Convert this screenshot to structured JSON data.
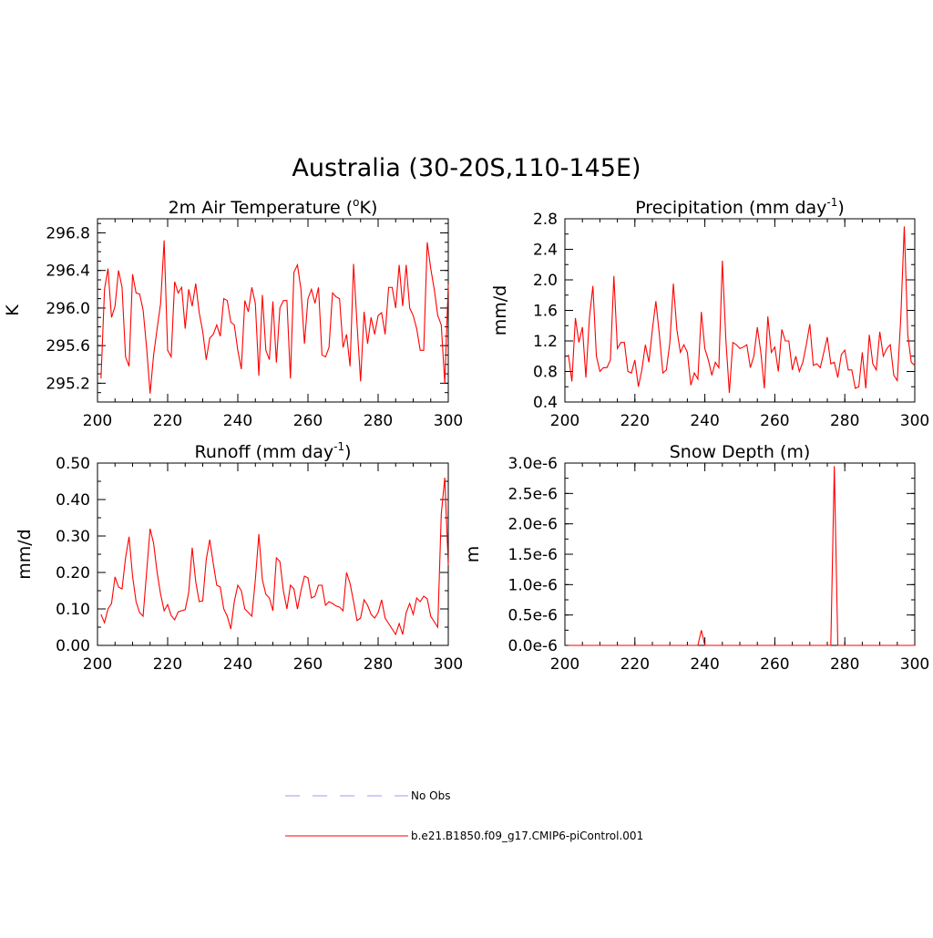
{
  "title": "Australia (30-20S,110-145E)",
  "colors": {
    "series": "#ff0000",
    "obs": "#9999ff",
    "axis": "#000000"
  },
  "legend": {
    "obs_label": "No Obs",
    "model_label": "b.e21.B1850.f09_g17.CMIP6-piControl.001"
  },
  "chart_data": [
    {
      "type": "line",
      "title": "2m Air Temperature (",
      "title_sup": "o",
      "title_after": "K)",
      "xlabel": "",
      "ylabel": "K",
      "xlim": [
        200,
        300
      ],
      "ylim": [
        295.0,
        296.95
      ],
      "xticks": [
        200,
        220,
        240,
        260,
        280,
        300
      ],
      "xtick_labels": [
        "200",
        "220",
        "240",
        "260",
        "280",
        "300"
      ],
      "yticks": [
        295.2,
        295.6,
        296.0,
        296.4,
        296.8
      ],
      "ytick_labels": [
        "295.2",
        "295.6",
        "296.0",
        "296.4",
        "296.8"
      ],
      "x_start": 201,
      "series": [
        {
          "name": "b.e21.B1850.f09_g17.CMIP6-piControl.001",
          "values": [
            295.25,
            296.2,
            296.42,
            295.9,
            296.02,
            296.4,
            296.22,
            295.48,
            295.38,
            296.36,
            296.16,
            296.15,
            295.98,
            295.58,
            295.09,
            295.5,
            295.78,
            296.05,
            296.72,
            295.55,
            295.48,
            296.28,
            296.16,
            296.22,
            295.78,
            296.2,
            296.02,
            296.26,
            295.95,
            295.75,
            295.45,
            295.68,
            295.72,
            295.82,
            295.7,
            296.1,
            296.08,
            295.85,
            295.82,
            295.55,
            295.35,
            296.08,
            295.96,
            296.22,
            296.05,
            295.28,
            296.14,
            295.55,
            295.45,
            296.07,
            295.42,
            296.0,
            296.08,
            296.08,
            295.25,
            296.38,
            296.46,
            296.2,
            295.62,
            296.1,
            296.2,
            296.05,
            296.22,
            295.5,
            295.48,
            295.58,
            296.16,
            296.12,
            296.1,
            295.58,
            295.72,
            295.38,
            296.47,
            295.82,
            295.22,
            295.96,
            295.62,
            295.9,
            295.72,
            295.92,
            295.95,
            295.72,
            296.22,
            296.22,
            296.0,
            296.46,
            296.02,
            296.46,
            296.0,
            295.92,
            295.78,
            295.55,
            295.55,
            296.7,
            296.42,
            296.2,
            295.92,
            295.82,
            295.2,
            296.25
          ]
        }
      ]
    },
    {
      "type": "line",
      "title": "Precipitation (mm day",
      "title_sup": "-1",
      "title_after": ")",
      "xlabel": "",
      "ylabel": "mm/d",
      "xlim": [
        200,
        300
      ],
      "ylim": [
        0.4,
        2.8
      ],
      "xticks": [
        200,
        220,
        240,
        260,
        280,
        300
      ],
      "xtick_labels": [
        "200",
        "220",
        "240",
        "260",
        "280",
        "300"
      ],
      "yticks": [
        0.4,
        0.8,
        1.2,
        1.6,
        2.0,
        2.4,
        2.8
      ],
      "ytick_labels": [
        "0.4",
        "0.8",
        "1.2",
        "1.6",
        "2.0",
        "2.4",
        "2.8"
      ],
      "x_start": 201,
      "series": [
        {
          "name": "b.e21.B1850.f09_g17.CMIP6-piControl.001",
          "values": [
            1.02,
            0.67,
            1.5,
            1.18,
            1.38,
            0.72,
            1.5,
            1.92,
            1.0,
            0.8,
            0.85,
            0.85,
            0.95,
            2.05,
            1.1,
            1.18,
            1.18,
            0.8,
            0.78,
            0.95,
            0.6,
            0.82,
            1.15,
            0.92,
            1.35,
            1.72,
            1.28,
            0.78,
            0.82,
            1.18,
            1.95,
            1.35,
            1.05,
            1.15,
            1.05,
            0.62,
            0.78,
            0.7,
            1.58,
            1.1,
            0.95,
            0.75,
            0.92,
            0.85,
            2.25,
            1.22,
            0.52,
            1.18,
            1.15,
            1.1,
            1.12,
            1.15,
            0.85,
            1.0,
            1.38,
            1.05,
            0.58,
            1.52,
            1.05,
            1.12,
            0.8,
            1.35,
            1.2,
            1.2,
            0.82,
            1.0,
            0.8,
            0.92,
            1.15,
            1.42,
            0.88,
            0.9,
            0.85,
            1.05,
            1.25,
            0.9,
            0.92,
            0.72,
            1.02,
            1.08,
            0.82,
            0.82,
            0.58,
            0.6,
            1.05,
            0.58,
            1.28,
            0.9,
            0.82,
            1.32,
            1.0,
            1.1,
            1.15,
            0.75,
            0.68,
            1.5,
            2.7,
            1.28,
            0.92,
            0.88
          ]
        }
      ]
    },
    {
      "type": "line",
      "title": "Runoff (mm day",
      "title_sup": "-1",
      "title_after": ")",
      "xlabel": "",
      "ylabel": "mm/d",
      "xlim": [
        200,
        300
      ],
      "ylim": [
        0.0,
        0.5
      ],
      "xticks": [
        200,
        220,
        240,
        260,
        280,
        300
      ],
      "xtick_labels": [
        "200",
        "220",
        "240",
        "260",
        "280",
        "300"
      ],
      "yticks": [
        0.0,
        0.1,
        0.2,
        0.3,
        0.4,
        0.5
      ],
      "ytick_labels": [
        "0.00",
        "0.10",
        "0.20",
        "0.30",
        "0.40",
        "0.50"
      ],
      "x_start": 201,
      "series": [
        {
          "name": "b.e21.B1850.f09_g17.CMIP6-piControl.001",
          "values": [
            0.085,
            0.062,
            0.1,
            0.115,
            0.188,
            0.16,
            0.155,
            0.24,
            0.298,
            0.19,
            0.12,
            0.09,
            0.08,
            0.2,
            0.32,
            0.28,
            0.2,
            0.14,
            0.095,
            0.112,
            0.082,
            0.07,
            0.092,
            0.095,
            0.098,
            0.145,
            0.268,
            0.175,
            0.12,
            0.122,
            0.235,
            0.29,
            0.225,
            0.165,
            0.16,
            0.1,
            0.08,
            0.045,
            0.12,
            0.165,
            0.15,
            0.1,
            0.09,
            0.08,
            0.18,
            0.305,
            0.18,
            0.14,
            0.13,
            0.095,
            0.24,
            0.23,
            0.15,
            0.1,
            0.165,
            0.155,
            0.1,
            0.15,
            0.19,
            0.185,
            0.13,
            0.135,
            0.165,
            0.165,
            0.11,
            0.12,
            0.115,
            0.108,
            0.105,
            0.095,
            0.2,
            0.17,
            0.12,
            0.068,
            0.075,
            0.125,
            0.11,
            0.085,
            0.075,
            0.09,
            0.125,
            0.075,
            0.06,
            0.045,
            0.03,
            0.06,
            0.03,
            0.09,
            0.115,
            0.085,
            0.13,
            0.12,
            0.135,
            0.128,
            0.08,
            0.065,
            0.05,
            0.36,
            0.46,
            0.22
          ]
        }
      ]
    },
    {
      "type": "line",
      "title": "Snow Depth (m)",
      "title_sup": "",
      "title_after": "",
      "xlabel": "",
      "ylabel": "m",
      "xlim": [
        200,
        300
      ],
      "ylim": [
        0.0,
        3e-06
      ],
      "xticks": [
        200,
        220,
        240,
        260,
        280,
        300
      ],
      "xtick_labels": [
        "200",
        "220",
        "240",
        "260",
        "280",
        "300"
      ],
      "yticks": [
        0.0,
        5e-07,
        1e-06,
        1.5e-06,
        2e-06,
        2.5e-06,
        3e-06
      ],
      "ytick_labels": [
        "0.0e-6",
        "0.5e-6",
        "1.0e-6",
        "1.5e-6",
        "2.0e-6",
        "2.5e-6",
        "3.0e-6"
      ],
      "x_start": 201,
      "series": [
        {
          "name": "b.e21.B1850.f09_g17.CMIP6-piControl.001",
          "values": [
            0,
            0,
            0,
            0,
            0,
            0,
            0,
            0,
            0,
            0,
            0,
            0,
            0,
            0,
            0,
            0,
            0,
            0,
            0,
            0,
            0,
            0,
            0,
            0,
            0,
            0,
            0,
            0,
            0,
            0,
            0,
            0,
            0,
            0,
            0,
            0,
            0,
            0,
            2.5e-07,
            0,
            0,
            0,
            0,
            0,
            0,
            0,
            0,
            0,
            0,
            0,
            0,
            0,
            0,
            0,
            0,
            0,
            0,
            0,
            0,
            0,
            0,
            0,
            0,
            0,
            0,
            0,
            0,
            0,
            0,
            0,
            0,
            0,
            0,
            0,
            0,
            0,
            2.95e-06,
            0,
            0,
            0,
            0,
            0,
            0,
            0,
            0,
            0,
            0,
            0,
            0,
            0,
            0,
            0,
            0,
            0,
            0,
            0,
            0,
            0,
            0,
            0
          ]
        }
      ]
    }
  ]
}
